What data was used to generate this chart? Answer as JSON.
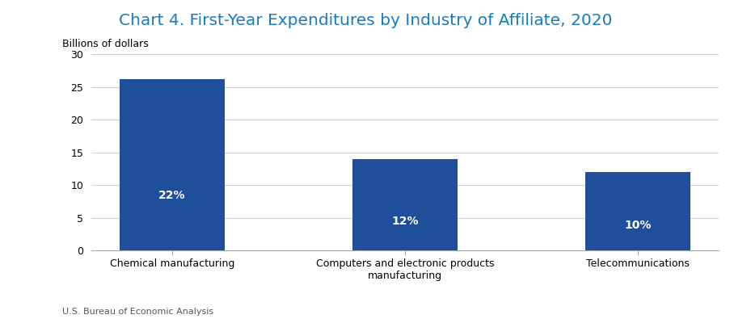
{
  "title": "Chart 4. First-Year Expenditures by Industry of Affiliate, 2020",
  "title_color": "#1A7BBF",
  "ylabel": "Billions of dollars",
  "ylabel_fontsize": 9,
  "categories": [
    "Chemical manufacturing",
    "Computers and electronic products\nmanufacturing",
    "Telecommunications"
  ],
  "values": [
    26.2,
    14.0,
    12.0
  ],
  "bar_labels": [
    "22%",
    "12%",
    "10%"
  ],
  "bar_color": "#1F4E9B",
  "bar_width": 0.45,
  "ylim": [
    0,
    30
  ],
  "yticks": [
    0,
    5,
    10,
    15,
    20,
    25,
    30
  ],
  "title_fontsize": 14.5,
  "bar_label_fontsize": 10,
  "xtick_fontsize": 9,
  "ytick_fontsize": 9,
  "footnote": "U.S. Bureau of Economic Analysis",
  "footnote_fontsize": 8,
  "background_color": "#ffffff",
  "grid_color": "#d0d0d0"
}
